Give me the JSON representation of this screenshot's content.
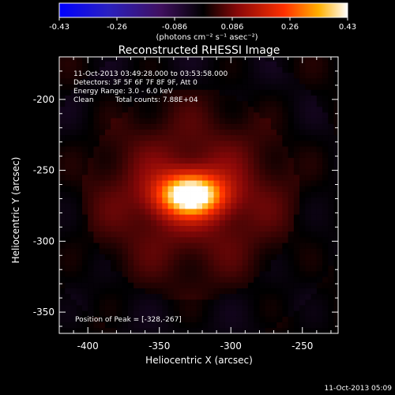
{
  "chart_data": {
    "type": "heatmap",
    "title": "Reconstructed RHESSI Image",
    "xlabel": "Heliocentric X (arcsec)",
    "ylabel": "Heliocentric Y (arcsec)",
    "xlim": [
      -420,
      -225
    ],
    "ylim": [
      -365,
      -170
    ],
    "xticks": [
      -400,
      -350,
      -300,
      -250
    ],
    "yticks": [
      -200,
      -250,
      -300,
      -350
    ],
    "colorbar": {
      "min": -0.43,
      "max": 0.43,
      "ticks": [
        "-0.43",
        "-0.26",
        "-0.086",
        "0.086",
        "0.26",
        "0.43"
      ],
      "label": "(photons cm⁻² s⁻¹ asec⁻²)"
    },
    "annotations": {
      "time_range": "11-Oct-2013 03:49:28.000 to 03:53:58.000",
      "detectors": "Detectors: 3F 5F 6F 7F 8F 9F, Att 0",
      "energy": "Energy Range: 3.0 - 6.0 keV",
      "method": "Clean",
      "counts": "Total counts: 7.88E+04",
      "peak": "Position of Peak = [-328,-267]"
    },
    "source": {
      "peak_x": -328,
      "peak_y": -267,
      "peak_value": 0.43
    },
    "timestamp": "11-Oct-2013 05:09"
  }
}
